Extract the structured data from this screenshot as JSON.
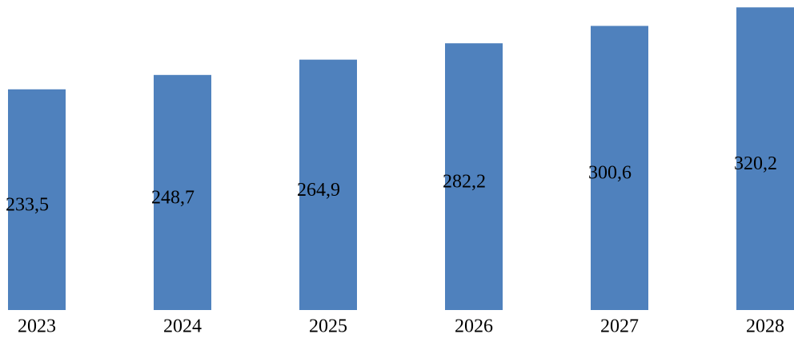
{
  "chart_data": {
    "type": "bar",
    "categories": [
      "2023",
      "2024",
      "2025",
      "2026",
      "2027",
      "2028"
    ],
    "values": [
      233.5,
      248.7,
      264.9,
      282.2,
      300.6,
      320.2
    ],
    "value_labels": [
      "233,5",
      "248,7",
      "264,9",
      "282,2",
      "300,6",
      "320,2"
    ],
    "color": "#4f81bd",
    "ylim": [
      0,
      328
    ]
  }
}
